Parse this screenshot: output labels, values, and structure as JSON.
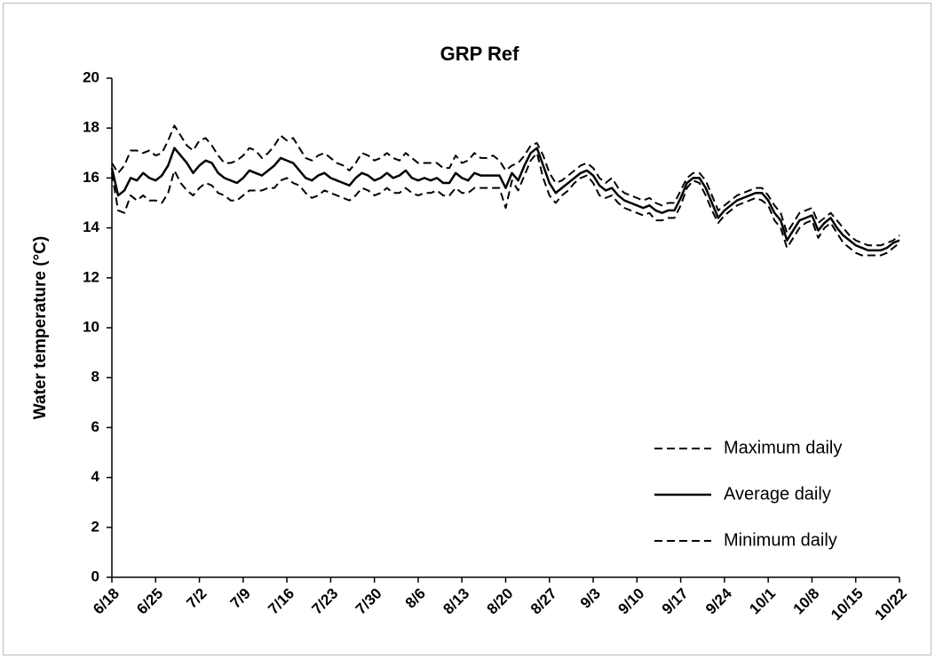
{
  "chart_data": {
    "type": "line",
    "title": "GRP Ref",
    "y_label": "Water temperature  (°C)",
    "categories": [
      "6/18",
      null,
      null,
      null,
      null,
      null,
      null,
      "6/25",
      null,
      null,
      null,
      null,
      null,
      null,
      "7/2",
      null,
      null,
      null,
      null,
      null,
      null,
      "7/9",
      null,
      null,
      null,
      null,
      null,
      null,
      "7/16",
      null,
      null,
      null,
      null,
      null,
      null,
      "7/23",
      null,
      null,
      null,
      null,
      null,
      null,
      "7/30",
      null,
      null,
      null,
      null,
      null,
      null,
      "8/6",
      null,
      null,
      null,
      null,
      null,
      null,
      "8/13",
      null,
      null,
      null,
      null,
      null,
      null,
      "8/20",
      null,
      null,
      null,
      null,
      null,
      null,
      "8/27",
      null,
      null,
      null,
      null,
      null,
      null,
      "9/3",
      null,
      null,
      null,
      null,
      null,
      null,
      "9/10",
      null,
      null,
      null,
      null,
      null,
      null,
      "9/17",
      null,
      null,
      null,
      null,
      null,
      null,
      "9/24",
      null,
      null,
      null,
      null,
      null,
      null,
      "10/1",
      null,
      null,
      null,
      null,
      null,
      null,
      "10/8",
      null,
      null,
      null,
      null,
      null,
      null,
      "10/15",
      null,
      null,
      null,
      null,
      null,
      null,
      "10/22"
    ],
    "series": [
      {
        "name": "Maximum daily",
        "color": "#000000",
        "style": "dashed",
        "values": [
          16.6,
          16.2,
          16.5,
          17.1,
          17.1,
          17.0,
          17.1,
          16.9,
          17.0,
          17.5,
          18.1,
          17.7,
          17.3,
          17.1,
          17.5,
          17.6,
          17.3,
          16.9,
          16.6,
          16.6,
          16.7,
          16.9,
          17.2,
          17.1,
          16.8,
          17.0,
          17.3,
          17.7,
          17.5,
          17.6,
          17.2,
          16.8,
          16.7,
          16.9,
          17.0,
          16.8,
          16.6,
          16.5,
          16.3,
          16.6,
          17.0,
          16.9,
          16.7,
          16.8,
          17.0,
          16.8,
          16.7,
          17.0,
          16.8,
          16.6,
          16.6,
          16.6,
          16.6,
          16.4,
          16.4,
          16.9,
          16.6,
          16.7,
          17.0,
          16.8,
          16.8,
          16.9,
          16.7,
          16.3,
          16.5,
          16.6,
          16.9,
          17.3,
          17.4,
          16.9,
          16.2,
          15.8,
          15.9,
          16.1,
          16.3,
          16.5,
          16.6,
          16.4,
          16.0,
          15.8,
          16.0,
          15.6,
          15.4,
          15.3,
          15.2,
          15.1,
          15.2,
          15.0,
          14.9,
          15.0,
          15.0,
          15.5,
          16.0,
          16.2,
          16.2,
          15.9,
          15.3,
          14.7,
          14.9,
          15.1,
          15.3,
          15.4,
          15.5,
          15.6,
          15.6,
          15.3,
          14.9,
          14.6,
          13.8,
          14.2,
          14.6,
          14.7,
          14.8,
          14.2,
          14.4,
          14.6,
          14.3,
          14.0,
          13.7,
          13.5,
          13.4,
          13.3,
          13.3,
          13.3,
          13.4,
          13.5,
          13.7
        ]
      },
      {
        "name": "Average daily",
        "color": "#000000",
        "style": "solid",
        "values": [
          16.4,
          15.3,
          15.5,
          16.0,
          15.9,
          16.2,
          16.0,
          15.9,
          16.1,
          16.5,
          17.2,
          16.9,
          16.6,
          16.2,
          16.5,
          16.7,
          16.6,
          16.2,
          16.0,
          15.9,
          15.8,
          16.0,
          16.3,
          16.2,
          16.1,
          16.3,
          16.5,
          16.8,
          16.7,
          16.6,
          16.3,
          16.0,
          15.9,
          16.1,
          16.2,
          16.0,
          15.9,
          15.8,
          15.7,
          16.0,
          16.2,
          16.1,
          15.9,
          16.0,
          16.2,
          16.0,
          16.1,
          16.3,
          16.0,
          15.9,
          16.0,
          15.9,
          16.0,
          15.8,
          15.8,
          16.2,
          16.0,
          15.9,
          16.2,
          16.1,
          16.1,
          16.1,
          16.1,
          15.6,
          16.2,
          15.9,
          16.5,
          17.0,
          17.2,
          16.5,
          15.8,
          15.4,
          15.6,
          15.8,
          16.0,
          16.2,
          16.3,
          16.1,
          15.7,
          15.5,
          15.6,
          15.3,
          15.1,
          15.0,
          14.9,
          14.8,
          14.9,
          14.7,
          14.6,
          14.7,
          14.7,
          15.2,
          15.8,
          16.0,
          16.0,
          15.6,
          15.0,
          14.4,
          14.7,
          14.9,
          15.1,
          15.2,
          15.3,
          15.4,
          15.4,
          15.1,
          14.6,
          14.3,
          13.5,
          13.9,
          14.3,
          14.4,
          14.5,
          13.9,
          14.2,
          14.4,
          14.0,
          13.7,
          13.5,
          13.3,
          13.2,
          13.1,
          13.1,
          13.1,
          13.2,
          13.4,
          13.5
        ]
      },
      {
        "name": "Minimum daily",
        "color": "#000000",
        "style": "dashed",
        "values": [
          16.2,
          14.7,
          14.6,
          15.3,
          15.1,
          15.3,
          15.1,
          15.1,
          15.0,
          15.4,
          16.3,
          15.8,
          15.5,
          15.3,
          15.6,
          15.8,
          15.7,
          15.4,
          15.3,
          15.1,
          15.1,
          15.3,
          15.5,
          15.5,
          15.5,
          15.6,
          15.6,
          15.9,
          16.0,
          15.8,
          15.7,
          15.4,
          15.2,
          15.3,
          15.5,
          15.4,
          15.3,
          15.2,
          15.1,
          15.3,
          15.6,
          15.5,
          15.3,
          15.4,
          15.6,
          15.4,
          15.4,
          15.6,
          15.4,
          15.3,
          15.4,
          15.4,
          15.5,
          15.3,
          15.3,
          15.6,
          15.4,
          15.4,
          15.6,
          15.6,
          15.6,
          15.6,
          15.6,
          14.8,
          15.9,
          15.5,
          16.1,
          16.7,
          17.0,
          16.0,
          15.3,
          15.0,
          15.3,
          15.5,
          15.8,
          16.0,
          16.1,
          15.8,
          15.3,
          15.2,
          15.3,
          15.0,
          14.8,
          14.7,
          14.6,
          14.5,
          14.6,
          14.3,
          14.3,
          14.4,
          14.4,
          14.9,
          15.6,
          15.9,
          15.8,
          15.3,
          14.7,
          14.2,
          14.5,
          14.7,
          14.9,
          15.0,
          15.1,
          15.2,
          15.1,
          14.9,
          14.3,
          14.0,
          13.2,
          13.6,
          14.0,
          14.2,
          14.3,
          13.6,
          14.0,
          14.2,
          13.8,
          13.4,
          13.2,
          13.0,
          12.9,
          12.9,
          12.9,
          12.9,
          13.0,
          13.2,
          13.4
        ]
      }
    ],
    "ylim": [
      0,
      20
    ],
    "yticks": [
      0,
      2,
      4,
      6,
      8,
      10,
      12,
      14,
      16,
      18,
      20
    ],
    "grid": false,
    "legend": "lower right"
  }
}
